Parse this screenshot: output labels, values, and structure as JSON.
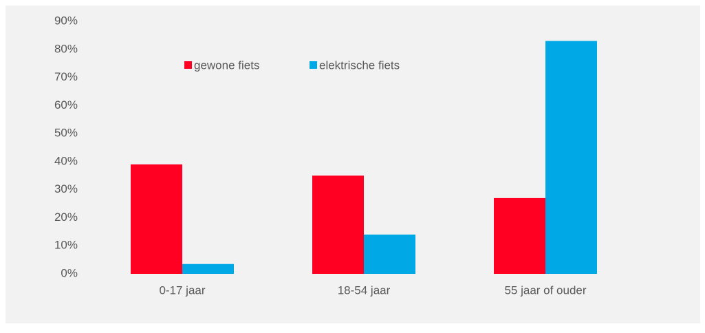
{
  "chart_data": {
    "type": "bar",
    "categories": [
      "0-17 jaar",
      "18-54 jaar",
      "55 jaar of ouder"
    ],
    "series": [
      {
        "name": "gewone fiets",
        "color": "#ff0022",
        "values": [
          39,
          35,
          27
        ]
      },
      {
        "name": "elektrische fiets",
        "color": "#00a9e6",
        "values": [
          3.5,
          14,
          83
        ]
      }
    ],
    "ylim": [
      0,
      90
    ],
    "yticks": [
      {
        "value": 0,
        "label": "0%"
      },
      {
        "value": 10,
        "label": "10%"
      },
      {
        "value": 20,
        "label": "20%"
      },
      {
        "value": 30,
        "label": "30%"
      },
      {
        "value": 40,
        "label": "40%"
      },
      {
        "value": 50,
        "label": "50%"
      },
      {
        "value": 60,
        "label": "60%"
      },
      {
        "value": 70,
        "label": "70%"
      },
      {
        "value": 80,
        "label": "80%"
      },
      {
        "value": 90,
        "label": "90%"
      }
    ],
    "grid": false,
    "legend": "top"
  }
}
